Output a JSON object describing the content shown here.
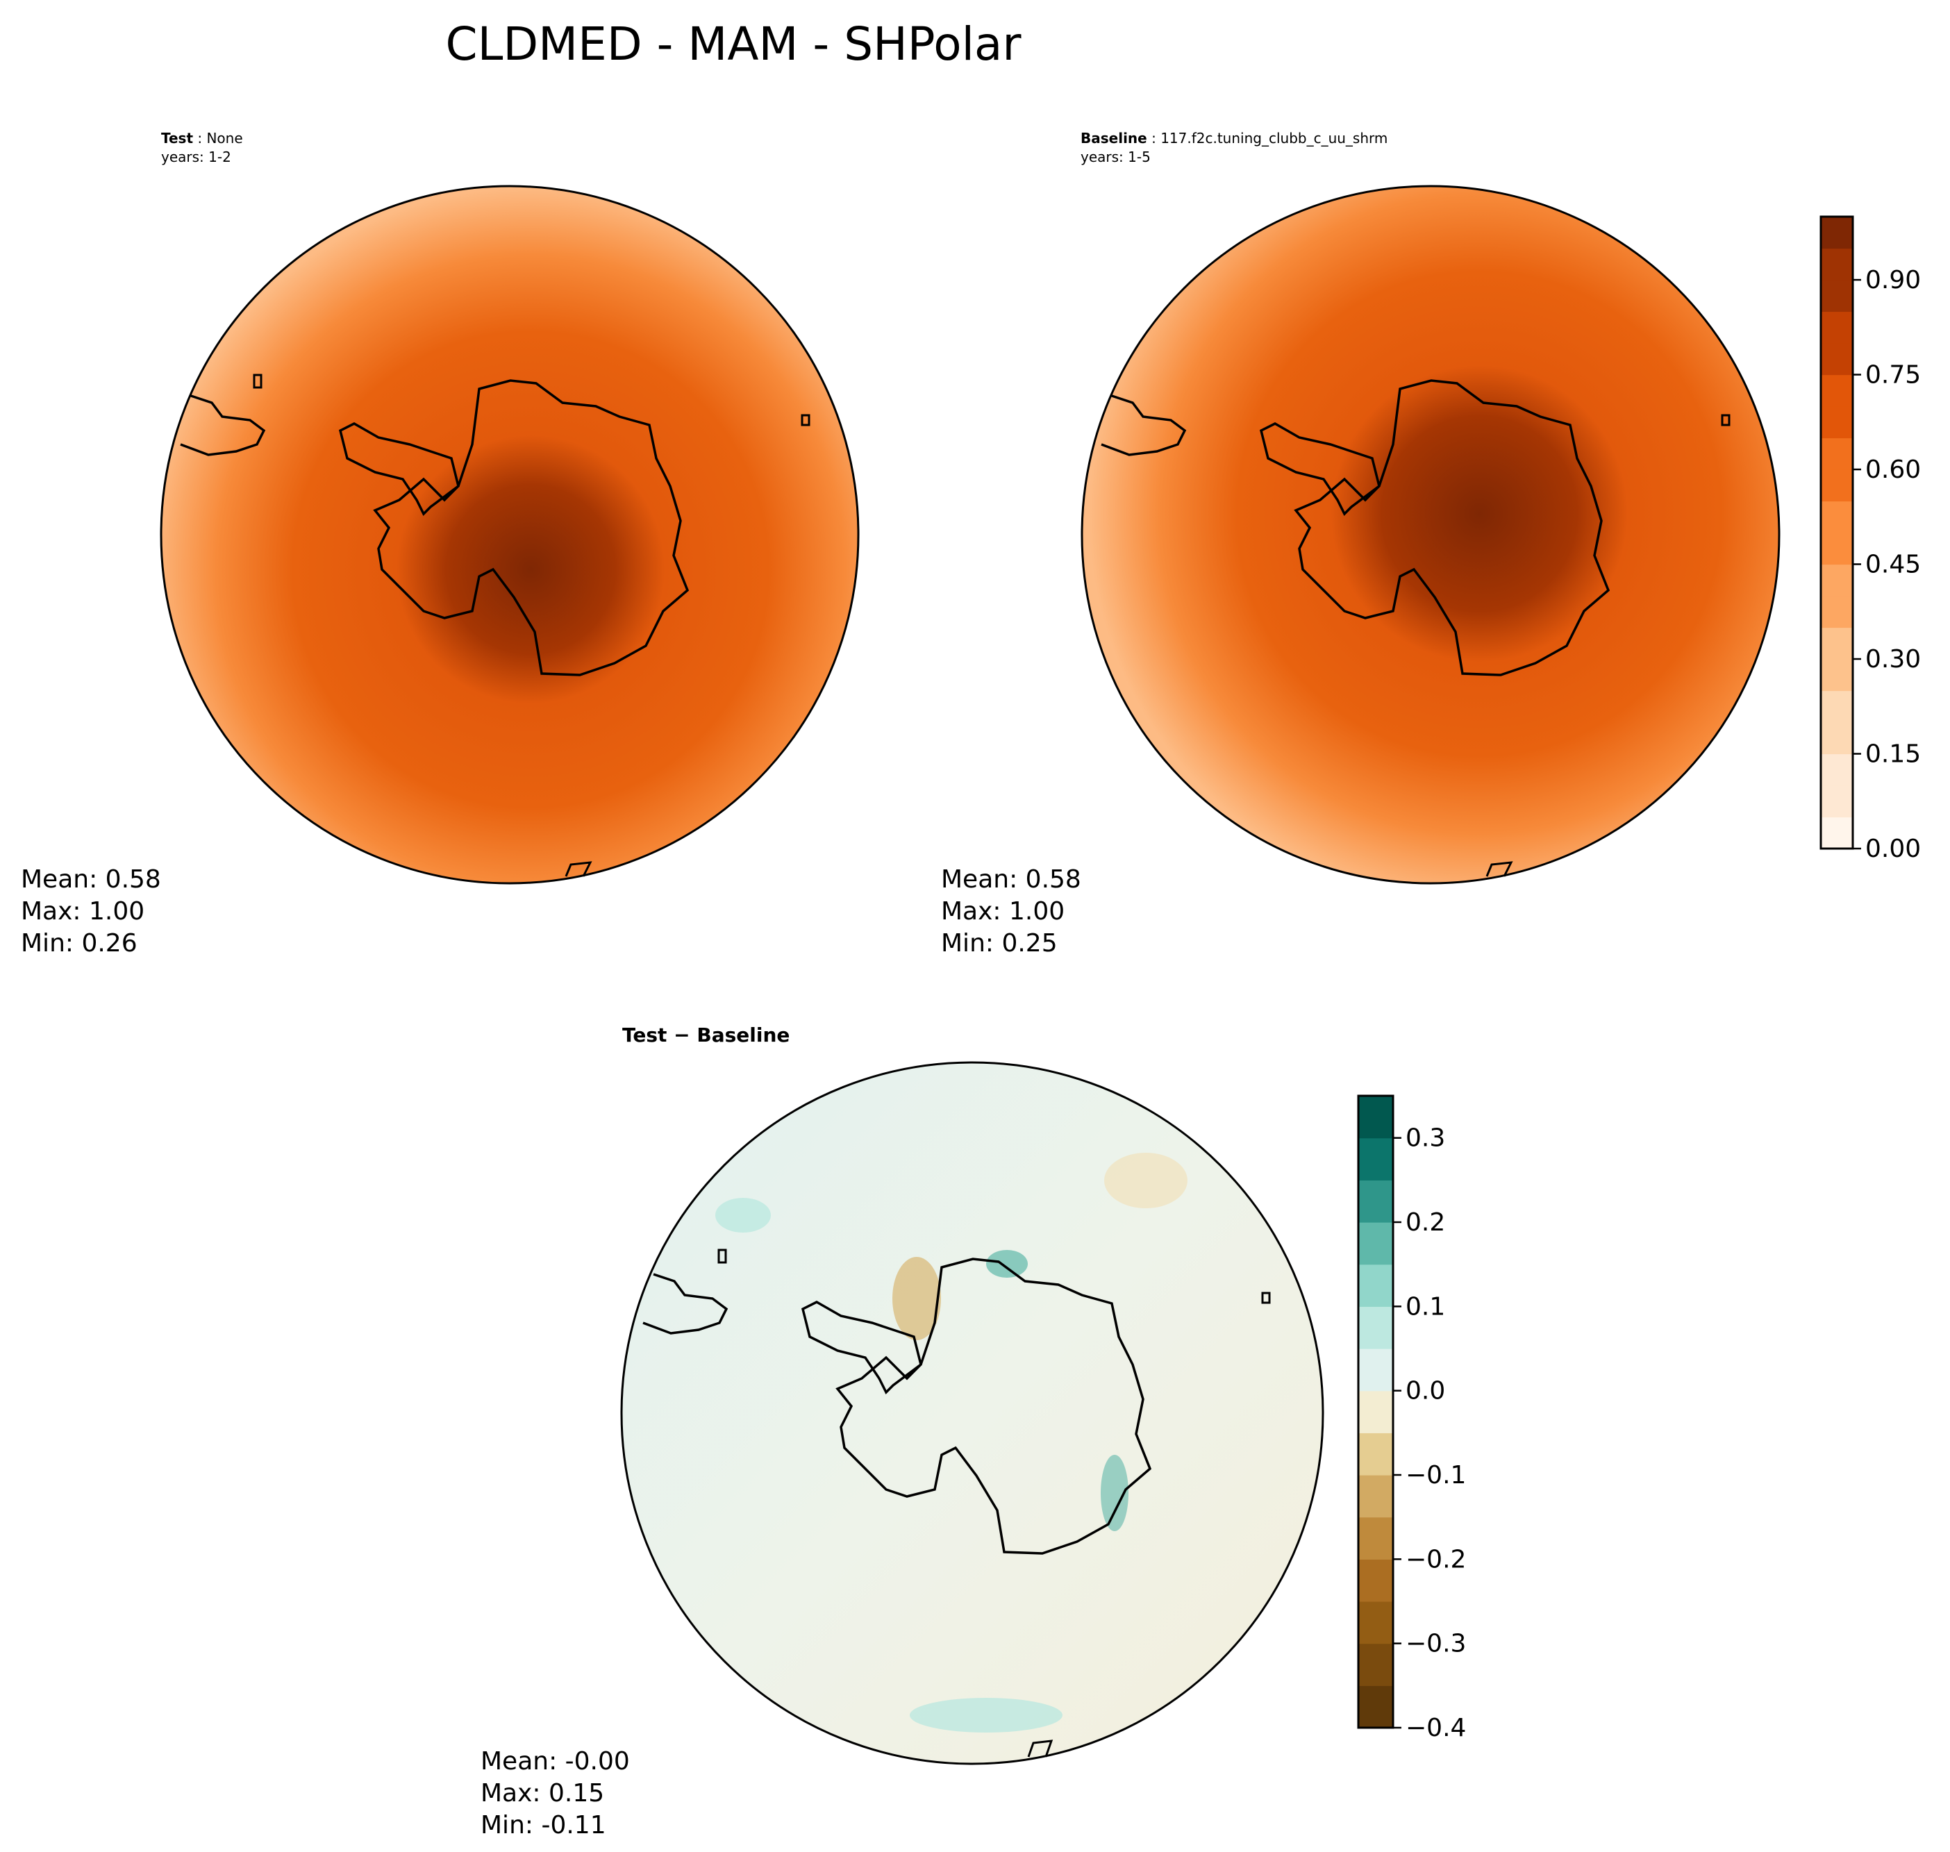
{
  "title": "CLDMED - MAM - SHPolar",
  "chart_data": [
    {
      "type": "heatmap",
      "projection": "south-polar-stereographic",
      "label": "Test",
      "case": "None",
      "years": "years: 1-2",
      "stats": {
        "mean": "Mean:  0.58",
        "max": "Max:  1.00",
        "min": "Min:  0.26"
      },
      "value_range": [
        0.26,
        1.0
      ]
    },
    {
      "type": "heatmap",
      "projection": "south-polar-stereographic",
      "label": "Baseline",
      "case": "117.f2c.tuning_clubb_c_uu_shrm",
      "years": "years: 1-5",
      "stats": {
        "mean": "Mean:  0.58",
        "max": "Max:  1.00",
        "min": "Min:  0.25"
      },
      "value_range": [
        0.25,
        1.0
      ],
      "colorbar": {
        "colormap": "Oranges",
        "levels": [
          0.0,
          0.05,
          0.1,
          0.15,
          0.2,
          0.25,
          0.3,
          0.35,
          0.4,
          0.45,
          0.5,
          0.55,
          0.6,
          0.65,
          0.7,
          0.75,
          0.8,
          0.85,
          0.9,
          0.95,
          1.0
        ],
        "ticks": [
          0.0,
          0.15,
          0.3,
          0.45,
          0.6,
          0.75,
          0.9
        ],
        "tick_labels": [
          "0.00",
          "0.15",
          "0.30",
          "0.45",
          "0.60",
          "0.75",
          "0.90"
        ],
        "colors": [
          "#fff5eb",
          "#fee8d3",
          "#fdd9b4",
          "#fdc28c",
          "#fda762",
          "#fb8d3d",
          "#f2701d",
          "#e25609",
          "#c44103",
          "#9f3303",
          "#7f2704"
        ]
      }
    },
    {
      "type": "heatmap",
      "projection": "south-polar-stereographic",
      "label": "Test − Baseline",
      "stats": {
        "mean": "Mean: -0.00",
        "max": "Max:  0.15",
        "min": "Min: -0.11"
      },
      "value_range": [
        -0.11,
        0.15
      ],
      "colorbar": {
        "colormap": "BrBG",
        "levels": [
          -0.4,
          -0.35,
          -0.3,
          -0.25,
          -0.2,
          -0.15,
          -0.1,
          -0.05,
          0.0,
          0.05,
          0.1,
          0.15,
          0.2,
          0.25,
          0.3,
          0.35
        ],
        "ticks": [
          -0.4,
          -0.3,
          -0.2,
          -0.1,
          0.0,
          0.1,
          0.2,
          0.3
        ],
        "tick_labels": [
          "−0.4",
          "−0.3",
          "−0.2",
          "−0.1",
          "0.0",
          "0.1",
          "0.2",
          "0.3"
        ],
        "colors": [
          "#603a0a",
          "#7a4b0e",
          "#935d14",
          "#ab6e22",
          "#bf8a3c",
          "#d2aa63",
          "#e5cd91",
          "#f3edd2",
          "#e0f1ee",
          "#bde8e0",
          "#91d6ca",
          "#5fb8aa",
          "#2f968a",
          "#0c756b",
          "#01584f"
        ]
      }
    }
  ]
}
